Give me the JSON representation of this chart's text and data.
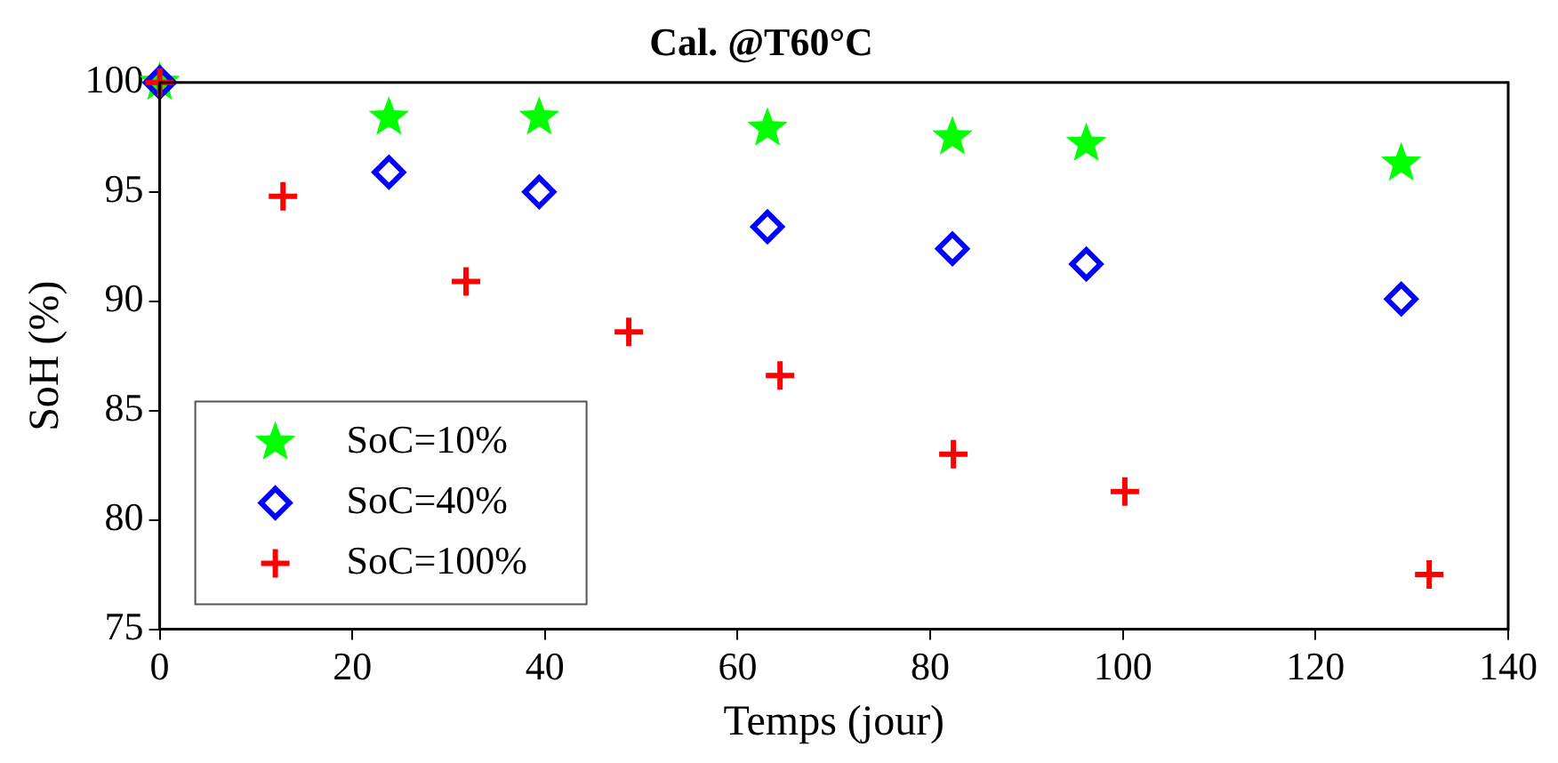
{
  "chart_data": {
    "type": "scatter",
    "title": "Cal. @T60°C",
    "xlabel": "Temps (jour)",
    "ylabel": "SoH (%)",
    "xlim": [
      0,
      140
    ],
    "xticks": [
      0,
      20,
      40,
      60,
      80,
      100,
      120,
      140
    ],
    "ylim": [
      75,
      100
    ],
    "yticks": [
      75,
      80,
      85,
      90,
      95,
      100
    ],
    "grid": false,
    "legend": "bottom left",
    "series": [
      {
        "name": "SoC=10%",
        "color": "#00ff00",
        "marker": "star",
        "x": [
          0,
          23.8,
          39.4,
          63.1,
          82.3,
          96.2,
          128.9
        ],
        "values": [
          100,
          98.4,
          98.4,
          97.9,
          97.5,
          97.2,
          96.3
        ]
      },
      {
        "name": "SoC=40%",
        "color": "#0000ff",
        "marker": "diamond",
        "x": [
          0,
          23.8,
          39.4,
          63.1,
          82.3,
          96.2,
          128.9
        ],
        "values": [
          100,
          95.9,
          95.0,
          93.4,
          92.4,
          91.7,
          90.1
        ]
      },
      {
        "name": "SoC=100%",
        "color": "#ff0000",
        "marker": "cross",
        "x": [
          0,
          12.8,
          31.8,
          48.7,
          64.4,
          82.4,
          100.2,
          131.8
        ],
        "values": [
          100,
          94.8,
          90.9,
          88.6,
          86.6,
          83.0,
          81.3,
          77.5
        ]
      }
    ]
  }
}
